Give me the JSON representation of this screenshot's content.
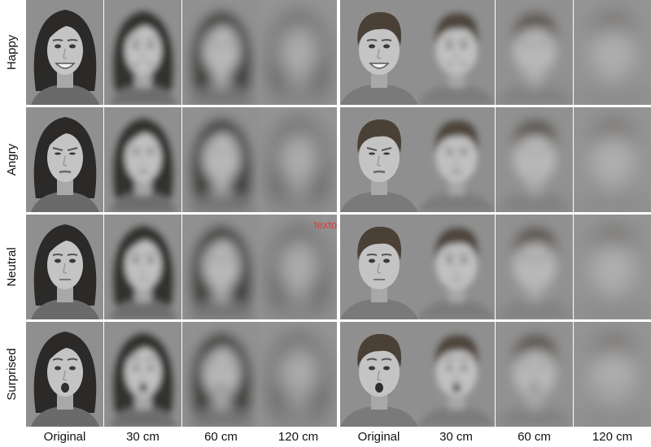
{
  "row_labels": [
    "Happy",
    "Angry",
    "Neutral",
    "Surprised"
  ],
  "column_labels": [
    "Original",
    "30 cm",
    "60 cm",
    "120 cm",
    "Original",
    "30 cm",
    "60 cm",
    "120 cm"
  ],
  "overlay_text": "texto"
}
